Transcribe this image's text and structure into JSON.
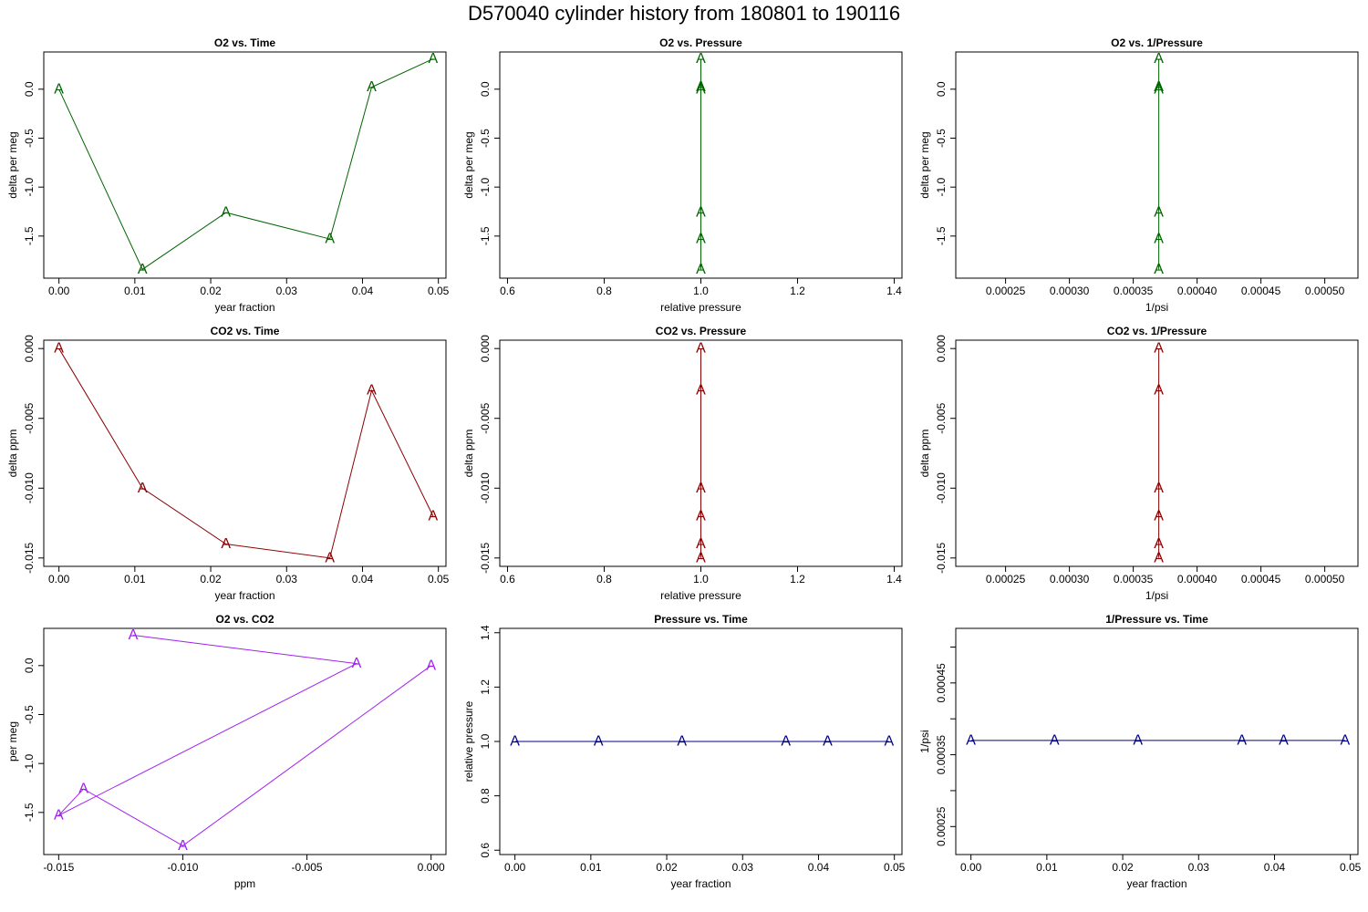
{
  "title": "D570040   cylinder history from  180801  to  190116",
  "colors": {
    "o2": "#006400",
    "co2": "#8b0000",
    "o2co2": "#a020f0",
    "pressure": "#00008b"
  },
  "chart_data": [
    {
      "id": "o2-vs-time",
      "type": "line",
      "title": "O2 vs. Time",
      "xlabel": "year fraction",
      "ylabel": "delta per meg",
      "marker": "A",
      "color": "#006400",
      "xlim": [
        -0.002,
        0.051
      ],
      "ylim": [
        -1.93,
        0.38
      ],
      "xticks": [
        {
          "v": 0,
          "t": "0.00"
        },
        {
          "v": 0.01,
          "t": "0.01"
        },
        {
          "v": 0.02,
          "t": "0.02"
        },
        {
          "v": 0.03,
          "t": "0.03"
        },
        {
          "v": 0.04,
          "t": "0.04"
        },
        {
          "v": 0.05,
          "t": "0.05"
        }
      ],
      "yticks": [
        {
          "v": 0,
          "t": "0.0"
        },
        {
          "v": -0.5,
          "t": "-0.5"
        },
        {
          "v": -1.0,
          "t": "-1.0"
        },
        {
          "v": -1.5,
          "t": "-1.5"
        }
      ],
      "x": [
        0.0,
        0.011,
        0.022,
        0.0357,
        0.0412,
        0.0493
      ],
      "y": [
        0.0,
        -1.84,
        -1.26,
        -1.53,
        0.02,
        0.31
      ]
    },
    {
      "id": "o2-vs-pressure",
      "type": "line",
      "title": "O2 vs. Pressure",
      "xlabel": "relative pressure",
      "ylabel": "delta per meg",
      "marker": "A",
      "color": "#006400",
      "xlim": [
        0.584,
        1.416
      ],
      "ylim": [
        -1.93,
        0.38
      ],
      "xticks": [
        {
          "v": 0.6,
          "t": "0.6"
        },
        {
          "v": 0.8,
          "t": "0.8"
        },
        {
          "v": 1.0,
          "t": "1.0"
        },
        {
          "v": 1.2,
          "t": "1.2"
        },
        {
          "v": 1.4,
          "t": "1.4"
        }
      ],
      "yticks": [
        {
          "v": 0,
          "t": "0.0"
        },
        {
          "v": -0.5,
          "t": "-0.5"
        },
        {
          "v": -1.0,
          "t": "-1.0"
        },
        {
          "v": -1.5,
          "t": "-1.5"
        }
      ],
      "x": [
        1.0,
        1.0,
        1.0,
        1.0,
        1.0,
        1.0
      ],
      "y": [
        0.0,
        -1.84,
        -1.26,
        -1.53,
        0.02,
        0.31
      ]
    },
    {
      "id": "o2-vs-inv-pressure",
      "type": "line",
      "title": "O2 vs. 1/Pressure",
      "xlabel": "1/psi",
      "ylabel": "delta per meg",
      "marker": "A",
      "color": "#006400",
      "xlim": [
        0.000211,
        0.000526
      ],
      "ylim": [
        -1.93,
        0.38
      ],
      "xticks": [
        {
          "v": 0.00025,
          "t": "0.00025"
        },
        {
          "v": 0.0003,
          "t": "0.00030"
        },
        {
          "v": 0.00035,
          "t": "0.00035"
        },
        {
          "v": 0.0004,
          "t": "0.00040"
        },
        {
          "v": 0.00045,
          "t": "0.00045"
        },
        {
          "v": 0.0005,
          "t": "0.00050"
        }
      ],
      "yticks": [
        {
          "v": 0,
          "t": "0.0"
        },
        {
          "v": -0.5,
          "t": "-0.5"
        },
        {
          "v": -1.0,
          "t": "-1.0"
        },
        {
          "v": -1.5,
          "t": "-1.5"
        }
      ],
      "x": [
        0.00037,
        0.00037,
        0.00037,
        0.00037,
        0.00037,
        0.00037
      ],
      "y": [
        0.0,
        -1.84,
        -1.26,
        -1.53,
        0.02,
        0.31
      ]
    },
    {
      "id": "co2-vs-time",
      "type": "line",
      "title": "CO2 vs. Time",
      "xlabel": "year fraction",
      "ylabel": "delta ppm",
      "marker": "A",
      "color": "#8b0000",
      "xlim": [
        -0.002,
        0.051
      ],
      "ylim": [
        -0.0156,
        0.0006
      ],
      "xticks": [
        {
          "v": 0,
          "t": "0.00"
        },
        {
          "v": 0.01,
          "t": "0.01"
        },
        {
          "v": 0.02,
          "t": "0.02"
        },
        {
          "v": 0.03,
          "t": "0.03"
        },
        {
          "v": 0.04,
          "t": "0.04"
        },
        {
          "v": 0.05,
          "t": "0.05"
        }
      ],
      "yticks": [
        {
          "v": 0,
          "t": "0.000"
        },
        {
          "v": -0.005,
          "t": "-0.005"
        },
        {
          "v": -0.01,
          "t": "-0.010"
        },
        {
          "v": -0.015,
          "t": "-0.015"
        }
      ],
      "x": [
        0.0,
        0.011,
        0.022,
        0.0357,
        0.0412,
        0.0493
      ],
      "y": [
        0.0,
        -0.01,
        -0.014,
        -0.015,
        -0.003,
        -0.012
      ]
    },
    {
      "id": "co2-vs-pressure",
      "type": "line",
      "title": "CO2 vs. Pressure",
      "xlabel": "relative pressure",
      "ylabel": "delta ppm",
      "marker": "A",
      "color": "#8b0000",
      "xlim": [
        0.584,
        1.416
      ],
      "ylim": [
        -0.0156,
        0.0006
      ],
      "xticks": [
        {
          "v": 0.6,
          "t": "0.6"
        },
        {
          "v": 0.8,
          "t": "0.8"
        },
        {
          "v": 1.0,
          "t": "1.0"
        },
        {
          "v": 1.2,
          "t": "1.2"
        },
        {
          "v": 1.4,
          "t": "1.4"
        }
      ],
      "yticks": [
        {
          "v": 0,
          "t": "0.000"
        },
        {
          "v": -0.005,
          "t": "-0.005"
        },
        {
          "v": -0.01,
          "t": "-0.010"
        },
        {
          "v": -0.015,
          "t": "-0.015"
        }
      ],
      "x": [
        1.0,
        1.0,
        1.0,
        1.0,
        1.0,
        1.0
      ],
      "y": [
        0.0,
        -0.01,
        -0.014,
        -0.015,
        -0.003,
        -0.012
      ]
    },
    {
      "id": "co2-vs-inv-pressure",
      "type": "line",
      "title": "CO2 vs. 1/Pressure",
      "xlabel": "1/psi",
      "ylabel": "delta ppm",
      "marker": "A",
      "color": "#8b0000",
      "xlim": [
        0.000211,
        0.000526
      ],
      "ylim": [
        -0.0156,
        0.0006
      ],
      "xticks": [
        {
          "v": 0.00025,
          "t": "0.00025"
        },
        {
          "v": 0.0003,
          "t": "0.00030"
        },
        {
          "v": 0.00035,
          "t": "0.00035"
        },
        {
          "v": 0.0004,
          "t": "0.00040"
        },
        {
          "v": 0.00045,
          "t": "0.00045"
        },
        {
          "v": 0.0005,
          "t": "0.00050"
        }
      ],
      "yticks": [
        {
          "v": 0,
          "t": "0.000"
        },
        {
          "v": -0.005,
          "t": "-0.005"
        },
        {
          "v": -0.01,
          "t": "-0.010"
        },
        {
          "v": -0.015,
          "t": "-0.015"
        }
      ],
      "x": [
        0.00037,
        0.00037,
        0.00037,
        0.00037,
        0.00037,
        0.00037
      ],
      "y": [
        0.0,
        -0.01,
        -0.014,
        -0.015,
        -0.003,
        -0.012
      ]
    },
    {
      "id": "o2-vs-co2",
      "type": "line",
      "title": "O2 vs. CO2",
      "xlabel": "ppm",
      "ylabel": "per meg",
      "marker": "A",
      "color": "#a020f0",
      "xlim": [
        -0.0156,
        0.0006
      ],
      "ylim": [
        -1.93,
        0.38
      ],
      "xticks": [
        {
          "v": -0.015,
          "t": "-0.015"
        },
        {
          "v": -0.01,
          "t": "-0.010"
        },
        {
          "v": -0.005,
          "t": "-0.005"
        },
        {
          "v": 0,
          "t": "0.000"
        }
      ],
      "yticks": [
        {
          "v": 0,
          "t": "0.0"
        },
        {
          "v": -0.5,
          "t": "-0.5"
        },
        {
          "v": -1.0,
          "t": "-1.0"
        },
        {
          "v": -1.5,
          "t": "-1.5"
        }
      ],
      "x": [
        0.0,
        -0.01,
        -0.014,
        -0.015,
        -0.003,
        -0.012
      ],
      "y": [
        0.0,
        -1.84,
        -1.26,
        -1.53,
        0.02,
        0.31
      ]
    },
    {
      "id": "pressure-vs-time",
      "type": "line",
      "title": "Pressure vs. Time",
      "xlabel": "year fraction",
      "ylabel": "relative pressure",
      "marker": "A",
      "color": "#00008b",
      "xlim": [
        -0.002,
        0.051
      ],
      "ylim": [
        0.584,
        1.416
      ],
      "xticks": [
        {
          "v": 0,
          "t": "0.00"
        },
        {
          "v": 0.01,
          "t": "0.01"
        },
        {
          "v": 0.02,
          "t": "0.02"
        },
        {
          "v": 0.03,
          "t": "0.03"
        },
        {
          "v": 0.04,
          "t": "0.04"
        },
        {
          "v": 0.05,
          "t": "0.05"
        }
      ],
      "yticks": [
        {
          "v": 0.6,
          "t": "0.6"
        },
        {
          "v": 0.8,
          "t": "0.8"
        },
        {
          "v": 1.0,
          "t": "1.0"
        },
        {
          "v": 1.2,
          "t": "1.2"
        },
        {
          "v": 1.4,
          "t": "1.4"
        }
      ],
      "x": [
        0.0,
        0.011,
        0.022,
        0.0357,
        0.0412,
        0.0493
      ],
      "y": [
        1.0,
        1.0,
        1.0,
        1.0,
        1.0,
        1.0
      ]
    },
    {
      "id": "inv-pressure-vs-time",
      "type": "line",
      "title": "1/Pressure vs. Time",
      "xlabel": "year fraction",
      "ylabel": "1/psi",
      "marker": "A",
      "color": "#00008b",
      "xlim": [
        -0.002,
        0.051
      ],
      "ylim": [
        0.000211,
        0.000526
      ],
      "xticks": [
        {
          "v": 0,
          "t": "0.00"
        },
        {
          "v": 0.01,
          "t": "0.01"
        },
        {
          "v": 0.02,
          "t": "0.02"
        },
        {
          "v": 0.03,
          "t": "0.03"
        },
        {
          "v": 0.04,
          "t": "0.04"
        },
        {
          "v": 0.05,
          "t": "0.05"
        }
      ],
      "yticks": [
        {
          "v": 0.00025,
          "t": "0.00025"
        },
        {
          "v": 0.0003,
          "t": ""
        },
        {
          "v": 0.00035,
          "t": "0.00035"
        },
        {
          "v": 0.0004,
          "t": ""
        },
        {
          "v": 0.00045,
          "t": "0.00045"
        },
        {
          "v": 0.0005,
          "t": ""
        }
      ],
      "x": [
        0.0,
        0.011,
        0.022,
        0.0357,
        0.0412,
        0.0493
      ],
      "y": [
        0.00037,
        0.00037,
        0.00037,
        0.00037,
        0.00037,
        0.00037
      ]
    }
  ]
}
